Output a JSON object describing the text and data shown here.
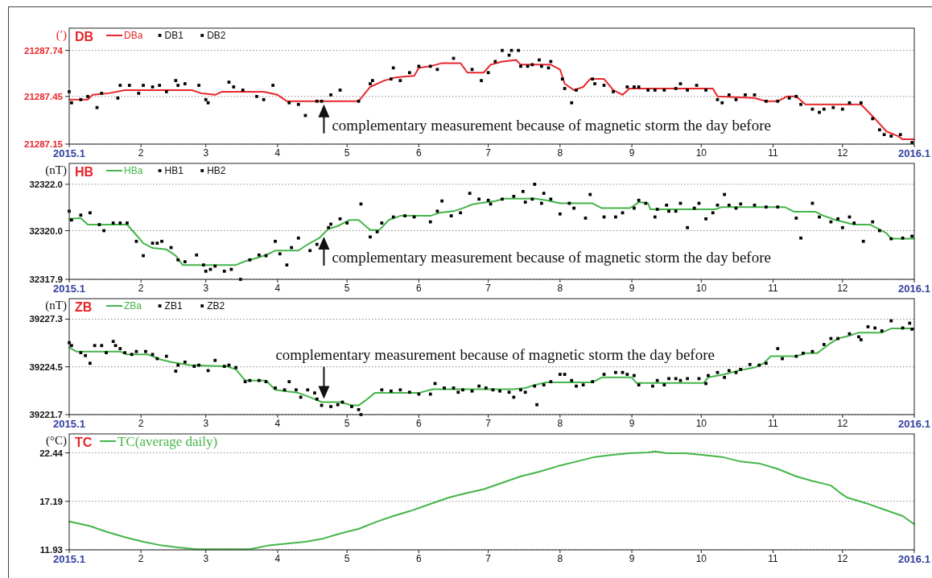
{
  "chart_data": [
    {
      "type": "line",
      "title": "DB",
      "ylabel": "(′)",
      "xlim": [
        "2015-01-01",
        "2016-01-01"
      ],
      "xticks": [
        {
          "value": "2015-01-01",
          "label": "2015.1"
        },
        {
          "value": "2015-02-01",
          "label": "2"
        },
        {
          "value": "2015-03-01",
          "label": "3"
        },
        {
          "value": "2015-04-01",
          "label": "4"
        },
        {
          "value": "2015-05-01",
          "label": "5"
        },
        {
          "value": "2015-06-01",
          "label": "6"
        },
        {
          "value": "2015-07-01",
          "label": "7"
        },
        {
          "value": "2015-08-01",
          "label": "8"
        },
        {
          "value": "2015-09-01",
          "label": "9"
        },
        {
          "value": "2015-10-01",
          "label": "10"
        },
        {
          "value": "2015-11-01",
          "label": "11"
        },
        {
          "value": "2015-12-01",
          "label": "12"
        },
        {
          "value": "2016-01-01",
          "label": "2016.1"
        }
      ],
      "ylim": [
        21287.15,
        21287.88
      ],
      "yticks": [
        21287.15,
        21287.45,
        21287.74
      ],
      "grid": "y",
      "legend": "top left",
      "series": [
        {
          "name": "DBa",
          "color": "#e8262a",
          "x": [
            "2015-01-01",
            "2015-01-09",
            "2015-01-11",
            "2015-01-18",
            "2015-01-25",
            "2015-02-23",
            "2015-02-27",
            "2015-03-05",
            "2015-03-08",
            "2015-03-26",
            "2015-04-01",
            "2015-04-05",
            "2015-05-06",
            "2015-05-11",
            "2015-05-17",
            "2015-05-22",
            "2015-05-30",
            "2015-06-01",
            "2015-06-06",
            "2015-06-11",
            "2015-06-19",
            "2015-06-22",
            "2015-06-29",
            "2015-07-02",
            "2015-07-07",
            "2015-07-13",
            "2015-07-15",
            "2015-07-28",
            "2015-08-01",
            "2015-08-03",
            "2015-08-07",
            "2015-08-11",
            "2015-08-14",
            "2015-08-20",
            "2015-08-24",
            "2015-08-28",
            "2015-08-31",
            "2015-09-02",
            "2015-10-06",
            "2015-10-08",
            "2015-10-24",
            "2015-10-29",
            "2015-11-03",
            "2015-11-07",
            "2015-11-11",
            "2015-11-15",
            "2015-12-09",
            "2015-12-15",
            "2015-12-20",
            "2015-12-25",
            "2015-12-27",
            "2016-01-01"
          ],
          "values": [
            21287.43,
            21287.43,
            21287.46,
            21287.47,
            21287.49,
            21287.49,
            21287.47,
            21287.46,
            21287.48,
            21287.48,
            21287.46,
            21287.42,
            21287.42,
            21287.51,
            21287.55,
            21287.57,
            21287.58,
            21287.63,
            21287.64,
            21287.66,
            21287.66,
            21287.6,
            21287.6,
            21287.65,
            21287.67,
            21287.68,
            21287.65,
            21287.65,
            21287.62,
            21287.53,
            21287.49,
            21287.51,
            21287.56,
            21287.56,
            21287.49,
            21287.46,
            21287.5,
            21287.5,
            21287.5,
            21287.45,
            21287.44,
            21287.42,
            21287.42,
            21287.45,
            21287.45,
            21287.4,
            21287.4,
            21287.31,
            21287.23,
            21287.2,
            21287.18,
            21287.18
          ]
        },
        {
          "name": "DB1",
          "type": "scatter",
          "color": "#000000",
          "marker": "square",
          "x": [
            "2015-01-01",
            "2015-01-06",
            "2015-01-13",
            "2015-01-22",
            "2015-01-27",
            "2015-02-02",
            "2015-02-09",
            "2015-02-16",
            "2015-02-20",
            "2015-03-01",
            "2015-03-11",
            "2015-03-17",
            "2015-03-26",
            "2015-04-06",
            "2015-04-13",
            "2015-04-20",
            "2015-04-28",
            "2015-05-11",
            "2015-05-20",
            "2015-05-24",
            "2015-06-01",
            "2015-06-09",
            "2015-06-24",
            "2015-07-01",
            "2015-07-07",
            "2015-07-11",
            "2015-07-15",
            "2015-07-20",
            "2015-07-24",
            "2015-07-28",
            "2015-08-03",
            "2015-08-08",
            "2015-08-16",
            "2015-08-24",
            "2015-09-02",
            "2015-09-08",
            "2015-09-15",
            "2015-09-22",
            "2015-09-29",
            "2015-10-08",
            "2015-10-13",
            "2015-10-20",
            "2015-10-29",
            "2015-11-08",
            "2015-11-13",
            "2015-11-21",
            "2015-11-27",
            "2015-12-04",
            "2015-12-14",
            "2015-12-19",
            "2015-12-26"
          ],
          "values": [
            21287.48,
            21287.43,
            21287.38,
            21287.44,
            21287.52,
            21287.52,
            21287.52,
            21287.55,
            21287.53,
            21287.43,
            21287.54,
            21287.49,
            21287.43,
            21287.41,
            21287.33,
            21287.42,
            21287.49,
            21287.53,
            21287.56,
            21287.55,
            21287.64,
            21287.62,
            21287.62,
            21287.6,
            21287.74,
            21287.74,
            21287.64,
            21287.65,
            21287.64,
            21287.67,
            21287.5,
            21287.49,
            21287.53,
            21287.48,
            21287.51,
            21287.49,
            21287.49,
            21287.53,
            21287.52,
            21287.43,
            21287.46,
            21287.46,
            21287.42,
            21287.44,
            21287.4,
            21287.35,
            21287.38,
            21287.41,
            21287.31,
            21287.21,
            21287.21
          ]
        },
        {
          "name": "DB2",
          "type": "scatter",
          "color": "#000000",
          "marker": "square",
          "x": [
            "2015-01-02",
            "2015-01-09",
            "2015-01-15",
            "2015-01-23",
            "2015-01-31",
            "2015-02-06",
            "2015-02-12",
            "2015-02-17",
            "2015-02-26",
            "2015-03-02",
            "2015-03-13",
            "2015-03-23",
            "2015-03-30",
            "2015-04-10",
            "2015-04-18",
            "2015-04-24",
            "2015-05-06",
            "2015-05-12",
            "2015-05-21",
            "2015-05-28",
            "2015-06-06",
            "2015-06-16",
            "2015-06-28",
            "2015-07-04",
            "2015-07-10",
            "2015-07-14",
            "2015-07-18",
            "2015-07-23",
            "2015-07-27",
            "2015-08-02",
            "2015-08-06",
            "2015-08-15",
            "2015-08-20",
            "2015-08-30",
            "2015-09-04",
            "2015-09-11",
            "2015-09-20",
            "2015-09-25",
            "2015-10-03",
            "2015-10-10",
            "2015-10-16",
            "2015-10-24",
            "2015-11-03",
            "2015-11-11",
            "2015-11-18",
            "2015-11-23",
            "2015-12-01",
            "2015-12-09",
            "2015-12-17",
            "2015-12-22",
            "2015-12-31"
          ],
          "values": [
            21287.41,
            21287.45,
            21287.47,
            21287.52,
            21287.47,
            21287.51,
            21287.48,
            21287.52,
            21287.52,
            21287.41,
            21287.51,
            21287.45,
            21287.52,
            21287.4,
            21287.42,
            21287.46,
            21287.42,
            21287.55,
            21287.63,
            21287.6,
            21287.64,
            21287.69,
            21287.55,
            21287.67,
            21287.71,
            21287.74,
            21287.64,
            21287.68,
            21287.63,
            21287.56,
            21287.41,
            21287.56,
            21287.52,
            21287.51,
            21287.51,
            21287.49,
            21287.5,
            21287.49,
            21287.49,
            21287.41,
            21287.43,
            21287.46,
            21287.42,
            21287.45,
            21287.37,
            21287.37,
            21287.37,
            21287.41,
            21287.24,
            21287.2,
            21287.16
          ]
        }
      ],
      "annotations": [
        {
          "text": "complementary measurement because of magnetic storm the day before",
          "x": "2015-04-21",
          "y": 21287.42
        }
      ]
    },
    {
      "type": "line",
      "title": "HB",
      "ylabel": "(nT)",
      "xlim": [
        "2015-01-01",
        "2016-01-01"
      ],
      "xticks": [
        {
          "value": "2015-01-01",
          "label": "2015.1"
        },
        {
          "value": "2015-02-01",
          "label": "2"
        },
        {
          "value": "2015-03-01",
          "label": "3"
        },
        {
          "value": "2015-04-01",
          "label": "4"
        },
        {
          "value": "2015-05-01",
          "label": "5"
        },
        {
          "value": "2015-06-01",
          "label": "6"
        },
        {
          "value": "2015-07-01",
          "label": "7"
        },
        {
          "value": "2015-08-01",
          "label": "8"
        },
        {
          "value": "2015-09-01",
          "label": "9"
        },
        {
          "value": "2015-10-01",
          "label": "10"
        },
        {
          "value": "2015-11-01",
          "label": "11"
        },
        {
          "value": "2015-12-01",
          "label": "12"
        },
        {
          "value": "2016-01-01",
          "label": "2016.1"
        }
      ],
      "ylim": [
        32317.9,
        32322.9
      ],
      "yticks": [
        32317.9,
        {
          "value": 32320,
          "label": "32320.0"
        },
        {
          "value": 32322,
          "label": "32322.0"
        }
      ],
      "grid": "y",
      "legend": "top left",
      "series": [
        {
          "name": "HBa",
          "color": "#44b549",
          "x": [
            "2015-01-01",
            "2015-01-06",
            "2015-01-09",
            "2015-01-26",
            "2015-01-30",
            "2015-02-02",
            "2015-02-06",
            "2015-02-12",
            "2015-02-16",
            "2015-02-19",
            "2015-03-14",
            "2015-03-18",
            "2015-03-23",
            "2015-03-27",
            "2015-03-31",
            "2015-04-10",
            "2015-04-14",
            "2015-04-19",
            "2015-04-23",
            "2015-04-27",
            "2015-05-02",
            "2015-05-06",
            "2015-05-11",
            "2015-05-15",
            "2015-05-19",
            "2015-05-24",
            "2015-06-06",
            "2015-06-10",
            "2015-06-16",
            "2015-06-20",
            "2015-06-24",
            "2015-06-27",
            "2015-07-04",
            "2015-07-08",
            "2015-07-21",
            "2015-07-26",
            "2015-08-01",
            "2015-08-15",
            "2015-08-19",
            "2015-08-31",
            "2015-09-02",
            "2015-09-04",
            "2015-09-08",
            "2015-09-09",
            "2015-10-07",
            "2015-10-10",
            "2015-11-06",
            "2015-11-10",
            "2015-11-19",
            "2015-11-23",
            "2015-11-28",
            "2015-12-06",
            "2015-12-13",
            "2015-12-20",
            "2015-12-22",
            "2016-01-01"
          ],
          "values": [
            32320.51,
            32320.54,
            32320.26,
            32320.26,
            32319.81,
            32319.46,
            32319.25,
            32319.19,
            32318.92,
            32318.52,
            32318.52,
            32318.68,
            32318.82,
            32318.95,
            32319.14,
            32319.14,
            32319.41,
            32319.68,
            32320.08,
            32320.2,
            32320.46,
            32320.46,
            32320.03,
            32320.03,
            32320.46,
            32320.64,
            32320.64,
            32320.77,
            32320.84,
            32320.97,
            32321.13,
            32321.18,
            32321.28,
            32321.38,
            32321.38,
            32321.31,
            32321.18,
            32321.18,
            32320.97,
            32320.97,
            32321.08,
            32321.23,
            32321.18,
            32320.92,
            32320.92,
            32321.02,
            32321.02,
            32320.82,
            32320.82,
            32320.64,
            32320.46,
            32320.26,
            32320.26,
            32319.89,
            32319.65,
            32319.65
          ]
        },
        {
          "name": "HB1",
          "type": "scatter",
          "color": "#000000",
          "marker": "square",
          "x": [
            "2015-01-01",
            "2015-01-06",
            "2015-01-14",
            "2015-01-20",
            "2015-01-26",
            "2015-02-02",
            "2015-02-08",
            "2015-02-14",
            "2015-02-20",
            "2015-02-28",
            "2015-03-03",
            "2015-03-09",
            "2015-03-16",
            "2015-03-24",
            "2015-03-31",
            "2015-04-05",
            "2015-04-10",
            "2015-04-18",
            "2015-04-24",
            "2015-05-01",
            "2015-05-11",
            "2015-05-16",
            "2015-05-26",
            "2015-06-06",
            "2015-06-11",
            "2015-06-19",
            "2015-06-27",
            "2015-07-02",
            "2015-07-12",
            "2015-07-17",
            "2015-07-21",
            "2015-07-25",
            "2015-08-01",
            "2015-08-07",
            "2015-08-14",
            "2015-08-25",
            "2015-09-02",
            "2015-09-07",
            "2015-09-12",
            "2015-09-17",
            "2015-09-22",
            "2015-09-28",
            "2015-10-03",
            "2015-10-08",
            "2015-10-13",
            "2015-10-18",
            "2015-10-29",
            "2015-11-11",
            "2015-11-18",
            "2015-11-26",
            "2015-12-01",
            "2015-12-06",
            "2015-12-14",
            "2015-12-22",
            "2015-12-31"
          ],
          "values": [
            32320.84,
            32320.67,
            32320.26,
            32320.33,
            32320.33,
            32318.92,
            32319.46,
            32319.27,
            32318.66,
            32318.52,
            32318.33,
            32318.25,
            32317.9,
            32318.95,
            32319.54,
            32318.52,
            32319.68,
            32319.41,
            32320.28,
            32320.33,
            32319.73,
            32320.33,
            32320.64,
            32320.38,
            32321.28,
            32320.77,
            32321.36,
            32321.15,
            32321.48,
            32321.23,
            32322.0,
            32321.61,
            32320.72,
            32320.97,
            32321.56,
            32320.59,
            32320.97,
            32321.18,
            32320.92,
            32320.84,
            32321.18,
            32320.97,
            32320.51,
            32321.1,
            32321.1,
            32321.15,
            32321.02,
            32320.54,
            32321.18,
            32320.38,
            32320.13,
            32320.33,
            32320.38,
            32319.65,
            32319.76
          ]
        },
        {
          "name": "HB2",
          "type": "scatter",
          "color": "#000000",
          "marker": "square",
          "x": [
            "2015-01-02",
            "2015-01-10",
            "2015-01-16",
            "2015-01-23",
            "2015-01-30",
            "2015-02-06",
            "2015-02-10",
            "2015-02-17",
            "2015-02-25",
            "2015-03-01",
            "2015-03-05",
            "2015-03-12",
            "2015-03-20",
            "2015-03-27",
            "2015-04-02",
            "2015-04-07",
            "2015-04-15",
            "2015-04-23",
            "2015-04-28",
            "2015-05-07",
            "2015-05-14",
            "2015-05-21",
            "2015-05-30",
            "2015-06-09",
            "2015-06-15",
            "2015-06-23",
            "2015-07-01",
            "2015-07-07",
            "2015-07-16",
            "2015-07-20",
            "2015-07-24",
            "2015-07-28",
            "2015-08-05",
            "2015-08-12",
            "2015-08-20",
            "2015-08-28",
            "2015-09-04",
            "2015-09-11",
            "2015-09-16",
            "2015-09-20",
            "2015-09-25",
            "2015-09-30",
            "2015-10-06",
            "2015-10-11",
            "2015-10-16",
            "2015-10-24",
            "2015-11-03",
            "2015-11-13",
            "2015-11-21",
            "2015-11-29",
            "2015-12-04",
            "2015-12-10",
            "2015-12-17",
            "2015-12-27"
          ],
          "values": [
            32320.46,
            32320.77,
            32320.0,
            32320.33,
            32319.54,
            32319.46,
            32319.54,
            32318.74,
            32318.95,
            32318.25,
            32318.47,
            32318.33,
            32318.74,
            32318.92,
            32319.0,
            32319.27,
            32319.14,
            32320.13,
            32320.51,
            32321.15,
            32319.95,
            32320.59,
            32320.59,
            32320.84,
            32320.64,
            32321.61,
            32321.31,
            32321.36,
            32321.69,
            32321.36,
            32321.18,
            32321.36,
            32321.18,
            32320.54,
            32320.59,
            32320.77,
            32321.31,
            32320.59,
            32321.1,
            32320.84,
            32320.13,
            32321.18,
            32320.77,
            32321.56,
            32320.97,
            32321.1,
            32321.02,
            32319.68,
            32320.59,
            32320.51,
            32320.59,
            32319.54,
            32320.0,
            32319.68
          ]
        }
      ],
      "annotations": [
        {
          "text": "complementary measurement because of magnetic storm the day before",
          "x": "2015-04-21",
          "y": 32319.88
        }
      ]
    },
    {
      "type": "line",
      "title": "ZB",
      "ylabel": "(nT)",
      "xlim": [
        "2015-01-01",
        "2016-01-01"
      ],
      "xticks": [
        {
          "value": "2015-01-01",
          "label": "2015.1"
        },
        {
          "value": "2015-02-01",
          "label": "2"
        },
        {
          "value": "2015-03-01",
          "label": "3"
        },
        {
          "value": "2015-04-01",
          "label": "4"
        },
        {
          "value": "2015-05-01",
          "label": "5"
        },
        {
          "value": "2015-06-01",
          "label": "6"
        },
        {
          "value": "2015-07-01",
          "label": "7"
        },
        {
          "value": "2015-08-01",
          "label": "8"
        },
        {
          "value": "2015-09-01",
          "label": "9"
        },
        {
          "value": "2015-10-01",
          "label": "10"
        },
        {
          "value": "2015-11-01",
          "label": "11"
        },
        {
          "value": "2015-12-01",
          "label": "12"
        },
        {
          "value": "2016-01-01",
          "label": "2016.1"
        }
      ],
      "ylim": [
        39221.7,
        39228.5
      ],
      "yticks": [
        39221.7,
        39224.5,
        39227.3
      ],
      "grid": "y",
      "legend": "top left",
      "series": [
        {
          "name": "ZBa",
          "color": "#44b549",
          "x": [
            "2015-01-01",
            "2015-01-04",
            "2015-01-23",
            "2015-01-26",
            "2015-02-04",
            "2015-02-09",
            "2015-02-14",
            "2015-02-22",
            "2015-03-10",
            "2015-03-14",
            "2015-03-18",
            "2015-03-27",
            "2015-03-31",
            "2015-04-10",
            "2015-04-15",
            "2015-04-20",
            "2015-04-28",
            "2015-05-03",
            "2015-05-06",
            "2015-05-09",
            "2015-05-13",
            "2015-06-01",
            "2015-06-07",
            "2015-07-12",
            "2015-07-17",
            "2015-07-21",
            "2015-07-26",
            "2015-08-15",
            "2015-08-19",
            "2015-09-01",
            "2015-09-03",
            "2015-10-02",
            "2015-10-04",
            "2015-10-11",
            "2015-10-17",
            "2015-10-24",
            "2015-10-28",
            "2015-10-31",
            "2015-11-11",
            "2015-11-15",
            "2015-11-20",
            "2015-11-25",
            "2015-11-29",
            "2015-12-04",
            "2015-12-08",
            "2015-12-18",
            "2015-12-22",
            "2016-01-01"
          ],
          "values": [
            39225.64,
            39225.4,
            39225.4,
            39225.23,
            39225.23,
            39224.95,
            39224.78,
            39224.6,
            39224.53,
            39224.35,
            39223.7,
            39223.7,
            39223.15,
            39222.97,
            39222.72,
            39222.43,
            39222.43,
            39222.24,
            39222.24,
            39222.53,
            39222.97,
            39222.97,
            39223.19,
            39223.19,
            39223.26,
            39223.44,
            39223.59,
            39223.59,
            39223.88,
            39223.88,
            39223.55,
            39223.55,
            39223.88,
            39224.06,
            39224.28,
            39224.46,
            39224.71,
            39225.12,
            39225.12,
            39225.3,
            39225.3,
            39225.81,
            39226.16,
            39226.33,
            39226.51,
            39226.51,
            39226.75,
            39226.75
          ]
        },
        {
          "name": "ZB1",
          "type": "scatter",
          "color": "#000000",
          "marker": "square",
          "x": [
            "2015-01-01",
            "2015-01-06",
            "2015-01-10",
            "2015-01-15",
            "2015-01-20",
            "2015-01-23",
            "2015-01-28",
            "2015-02-03",
            "2015-02-08",
            "2015-02-16",
            "2015-02-20",
            "2015-02-26",
            "2015-03-05",
            "2015-03-11",
            "2015-03-18",
            "2015-03-24",
            "2015-03-31",
            "2015-04-06",
            "2015-04-11",
            "2015-04-17",
            "2015-04-20",
            "2015-04-27",
            "2015-05-03",
            "2015-05-07",
            "2015-05-20",
            "2015-05-28",
            "2015-06-06",
            "2015-06-12",
            "2015-06-18",
            "2015-06-24",
            "2015-06-30",
            "2015-07-06",
            "2015-07-12",
            "2015-07-17",
            "2015-07-22",
            "2015-07-28",
            "2015-08-03",
            "2015-08-08",
            "2015-08-15",
            "2015-08-25",
            "2015-08-30",
            "2015-09-04",
            "2015-09-12",
            "2015-09-17",
            "2015-09-22",
            "2015-09-30",
            "2015-10-04",
            "2015-10-11",
            "2015-10-16",
            "2015-10-22",
            "2015-10-29",
            "2015-11-05",
            "2015-11-14",
            "2015-11-23",
            "2015-11-29",
            "2015-12-08",
            "2015-12-12",
            "2015-12-18",
            "2015-12-27",
            "2015-12-31"
          ],
          "values": [
            39225.92,
            39225.33,
            39224.71,
            39225.75,
            39225.99,
            39225.57,
            39225.23,
            39225.4,
            39224.98,
            39224.25,
            39224.78,
            39224.6,
            39224.88,
            39224.6,
            39223.63,
            39223.7,
            39223.26,
            39223.63,
            39222.72,
            39222.97,
            39222.24,
            39222.28,
            39222.17,
            39221.7,
            39223.08,
            39223.01,
            39222.9,
            39223.26,
            39223.01,
            39223.08,
            39223.26,
            39223.08,
            39222.72,
            39223.01,
            39222.28,
            39223.63,
            39224.06,
            39223.37,
            39223.63,
            39224.17,
            39224.06,
            39223.44,
            39223.7,
            39223.81,
            39223.7,
            39223.81,
            39223.99,
            39223.88,
            39224.17,
            39224.64,
            39224.71,
            39224.98,
            39225.3,
            39225.81,
            39226.16,
            39226.26,
            39226.85,
            39226.61,
            39226.78,
            39226.71
          ]
        },
        {
          "name": "ZB2",
          "type": "scatter",
          "color": "#000000",
          "marker": "square",
          "x": [
            "2015-01-02",
            "2015-01-08",
            "2015-01-12",
            "2015-01-17",
            "2015-01-21",
            "2015-01-25",
            "2015-01-30",
            "2015-02-06",
            "2015-02-12",
            "2015-02-17",
            "2015-02-24",
            "2015-03-02",
            "2015-03-09",
            "2015-03-14",
            "2015-03-20",
            "2015-03-27",
            "2015-04-04",
            "2015-04-09",
            "2015-04-14",
            "2015-04-18",
            "2015-04-24",
            "2015-04-29",
            "2015-05-06",
            "2015-05-16",
            "2015-05-24",
            "2015-06-01",
            "2015-06-08",
            "2015-06-16",
            "2015-06-20",
            "2015-06-27",
            "2015-07-03",
            "2015-07-10",
            "2015-07-15",
            "2015-07-21",
            "2015-07-25",
            "2015-08-01",
            "2015-08-06",
            "2015-08-11",
            "2015-08-20",
            "2015-08-28",
            "2015-09-02",
            "2015-09-10",
            "2015-09-15",
            "2015-09-20",
            "2015-09-25",
            "2015-10-03",
            "2015-10-08",
            "2015-10-13",
            "2015-10-18",
            "2015-10-26",
            "2015-11-03",
            "2015-11-11",
            "2015-11-18",
            "2015-11-26",
            "2015-12-04",
            "2015-12-09",
            "2015-12-15",
            "2015-12-22",
            "2015-12-30"
          ],
          "values": [
            39225.75,
            39225.16,
            39225.75,
            39225.33,
            39225.75,
            39225.33,
            39225.4,
            39225.23,
            39225.12,
            39224.6,
            39224.53,
            39224.28,
            39224.53,
            39224.46,
            39223.7,
            39223.63,
            39223.15,
            39223.15,
            39223.15,
            39222.61,
            39222.17,
            39222.43,
            39221.99,
            39223.15,
            39223.15,
            39222.9,
            39223.52,
            39223.26,
            39223.15,
            39223.37,
            39223.15,
            39223.01,
            39223.15,
            39223.37,
            39223.44,
            39224.06,
            39223.7,
            39223.44,
            39224.06,
            39224.17,
            39223.99,
            39223.37,
            39223.44,
            39223.81,
            39223.81,
            39223.52,
            39224.17,
            39224.28,
            39224.35,
            39224.6,
            39225.57,
            39225.12,
            39225.4,
            39226.16,
            39226.44,
            39226.09,
            39226.78,
            39227.2,
            39227.06
          ]
        }
      ],
      "annotations": [
        {
          "text": "complementary measurement because of magnetic storm the day before",
          "x": "2015-04-21",
          "y": 39222.43
        }
      ]
    },
    {
      "type": "line",
      "title": "TC",
      "ylabel": "(°C)",
      "xlim": [
        "2015-01-01",
        "2016-01-01"
      ],
      "xticks": [
        {
          "value": "2015-01-01",
          "label": "2015.1"
        },
        {
          "value": "2015-02-01",
          "label": "2"
        },
        {
          "value": "2015-03-01",
          "label": "3"
        },
        {
          "value": "2015-04-01",
          "label": "4"
        },
        {
          "value": "2015-05-01",
          "label": "5"
        },
        {
          "value": "2015-06-01",
          "label": "6"
        },
        {
          "value": "2015-07-01",
          "label": "7"
        },
        {
          "value": "2015-08-01",
          "label": "8"
        },
        {
          "value": "2015-09-01",
          "label": "9"
        },
        {
          "value": "2015-10-01",
          "label": "10"
        },
        {
          "value": "2015-11-01",
          "label": "11"
        },
        {
          "value": "2015-12-01",
          "label": "12"
        },
        {
          "value": "2016-01-01",
          "label": "2016.1"
        }
      ],
      "ylim": [
        11.93,
        24.5
      ],
      "yticks": [
        11.93,
        17.19,
        22.44
      ],
      "grid": "y",
      "legend": "top left",
      "series": [
        {
          "name": "TC(average daily)",
          "color": "#44b549",
          "x": [
            "2015-01-01",
            "2015-01-10",
            "2015-01-17",
            "2015-01-25",
            "2015-02-02",
            "2015-02-10",
            "2015-02-17",
            "2015-02-25",
            "2015-03-05",
            "2015-03-13",
            "2015-03-20",
            "2015-03-28",
            "2015-04-05",
            "2015-04-13",
            "2015-04-20",
            "2015-04-28",
            "2015-05-06",
            "2015-05-14",
            "2015-05-21",
            "2015-05-29",
            "2015-06-06",
            "2015-06-14",
            "2015-06-22",
            "2015-06-29",
            "2015-07-07",
            "2015-07-15",
            "2015-07-23",
            "2015-07-31",
            "2015-08-08",
            "2015-08-16",
            "2015-08-23",
            "2015-08-31",
            "2015-09-08",
            "2015-09-11",
            "2015-09-16",
            "2015-09-24",
            "2015-10-02",
            "2015-10-10",
            "2015-10-18",
            "2015-10-26",
            "2015-11-03",
            "2015-11-11",
            "2015-11-18",
            "2015-11-26",
            "2015-11-30",
            "2015-12-03",
            "2015-12-11",
            "2015-12-19",
            "2015-12-27",
            "2016-01-01"
          ],
          "values": [
            15.0,
            14.5,
            13.9,
            13.3,
            12.8,
            12.4,
            12.2,
            12.0,
            12.0,
            12.0,
            12.0,
            12.4,
            12.6,
            12.8,
            13.1,
            13.7,
            14.2,
            15.0,
            15.6,
            16.2,
            16.9,
            17.6,
            18.1,
            18.5,
            19.2,
            19.9,
            20.4,
            21.0,
            21.5,
            22.0,
            22.2,
            22.4,
            22.5,
            22.6,
            22.4,
            22.4,
            22.2,
            22.0,
            21.5,
            21.3,
            20.7,
            19.9,
            19.4,
            18.9,
            18.1,
            17.6,
            17.0,
            16.3,
            15.6,
            14.7
          ]
        }
      ]
    }
  ]
}
